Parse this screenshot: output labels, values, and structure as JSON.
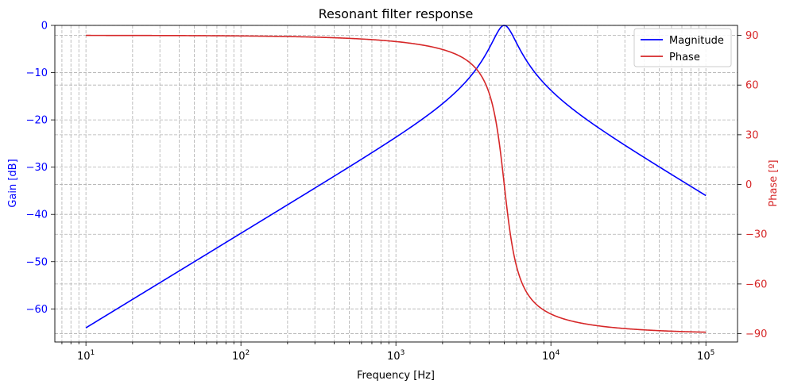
{
  "chart_data": {
    "type": "line",
    "title": "Resonant filter response",
    "xlabel": "Frequency [Hz]",
    "ylabel_left": "Gain [dB]",
    "ylabel_right": "Phase [º]",
    "x_scale": "log",
    "xlim": [
      6.3,
      160000
    ],
    "ylim_left": [
      -67,
      0
    ],
    "ylim_right": [
      -95,
      96
    ],
    "x_ticks": [
      10,
      100,
      1000,
      10000,
      100000
    ],
    "y_ticks_left": [
      0,
      -10,
      -20,
      -30,
      -40,
      -50,
      -60
    ],
    "y_ticks_left_labels": [
      "0",
      "−10",
      "−20",
      "−30",
      "−40",
      "−50",
      "−60"
    ],
    "y_ticks_right": [
      90,
      60,
      30,
      0,
      -30,
      -60,
      -90
    ],
    "y_ticks_right_labels": [
      "90",
      "60",
      "30",
      "0",
      "−30",
      "−60",
      "−90"
    ],
    "grid": true,
    "legend_position": "top-right",
    "filter": {
      "type": "band-pass",
      "center_frequency_hz": 5000,
      "peak_gain_db": 0,
      "x_range": [
        10,
        100000
      ]
    },
    "series": [
      {
        "name": "Magnitude",
        "axis": "left",
        "color": "#0000ff",
        "x": [
          10,
          100,
          1000,
          3000,
          5000,
          8000,
          10000,
          100000
        ],
        "y": [
          -64,
          -44,
          -24,
          -12.5,
          0,
          -11,
          -14,
          -36
        ]
      },
      {
        "name": "Phase",
        "axis": "right",
        "color": "#d62728",
        "x": [
          10,
          100,
          1000,
          3000,
          5000,
          8000,
          10000,
          100000
        ],
        "y": [
          90,
          89.8,
          88,
          78,
          0,
          -78,
          -82,
          -89
        ]
      }
    ]
  }
}
